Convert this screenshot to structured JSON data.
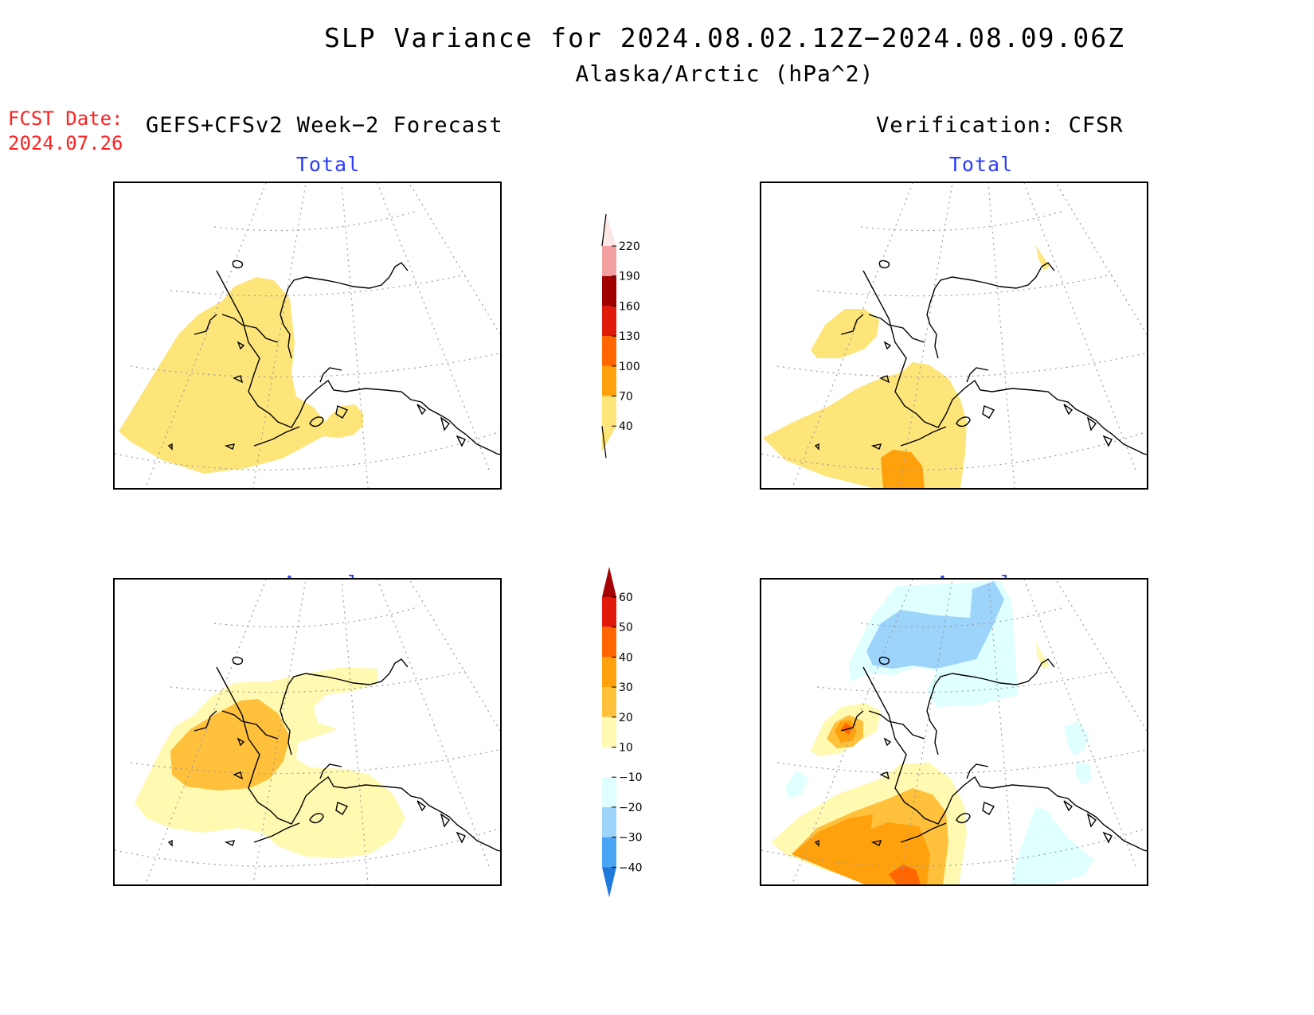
{
  "title": {
    "line1": "SLP Variance for 2024.08.02.12Z−2024.08.09.06Z",
    "line2": "Alaska/Arctic (hPa^2)"
  },
  "fcst_date": {
    "label": "FCST Date:",
    "value": "2024.07.26"
  },
  "headers": {
    "left": "GEFS+CFSv2 Week−2 Forecast",
    "right": "Verification: CFSR"
  },
  "panels": {
    "fcst_total": {
      "subtitle": "Total"
    },
    "verif_total": {
      "subtitle": "Total"
    },
    "fcst_anom": {
      "subtitle": "Anomaly"
    },
    "verif_anom": {
      "subtitle": "Anomaly"
    }
  },
  "colorbars": {
    "total": {
      "levels": [
        "40",
        "70",
        "100",
        "130",
        "160",
        "190",
        "220"
      ],
      "colors": [
        "#fde57a",
        "#ffa10c",
        "#ff6600",
        "#e01b0b",
        "#a10000",
        "#f2a1a0",
        "#fde7e6"
      ]
    },
    "anomaly": {
      "levels": [
        "60",
        "50",
        "40",
        "30",
        "20",
        "10",
        "−10",
        "−20",
        "−30",
        "−40"
      ],
      "colors": [
        "#a50002",
        "#e11a0b",
        "#ff6600",
        "#ffa10c",
        "#ffc03c",
        "#fff9b1",
        "#ffffff",
        "#e0ffff",
        "#9dd4fc",
        "#4aa5f4",
        "#1f78dc"
      ]
    }
  },
  "colors": {
    "title_red": "#ff2020",
    "subtitle_blue": "#2b3bff"
  }
}
